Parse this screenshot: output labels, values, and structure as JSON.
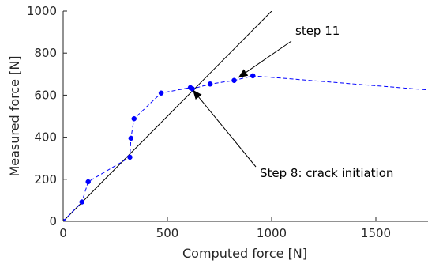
{
  "chart_data": {
    "type": "scatter",
    "xlabel": "Computed force [N]",
    "ylabel": "Measured force [N]",
    "xlim": [
      0,
      1750
    ],
    "ylim": [
      0,
      1000
    ],
    "x_ticks": [
      0,
      500,
      1000,
      1500
    ],
    "x_tick_labels": [
      "0",
      "500",
      "1000",
      "1500"
    ],
    "y_ticks": [
      0,
      200,
      400,
      600,
      800,
      1000
    ],
    "y_tick_labels": [
      "0",
      "200",
      "400",
      "600",
      "800",
      "1000"
    ],
    "grid": false,
    "series": [
      {
        "style": "dashed line with filled circle markers",
        "color": "#0000ff",
        "x": [
          0,
          90,
          120,
          320,
          325,
          340,
          470,
          610,
          620,
          705,
          820,
          910,
          1750
        ],
        "y": [
          0,
          92,
          188,
          305,
          395,
          488,
          610,
          636,
          630,
          653,
          670,
          692,
          625
        ],
        "marker_count": 12
      }
    ],
    "reference_line": {
      "style": "solid",
      "color": "#000000",
      "x": [
        0,
        1000
      ],
      "y": [
        0,
        1000
      ]
    },
    "annotations": [
      {
        "text": "step 11",
        "points_to": [
          820,
          670
        ]
      },
      {
        "text": "Step 8: crack initiation",
        "points_to": [
          620,
          630
        ]
      }
    ]
  }
}
